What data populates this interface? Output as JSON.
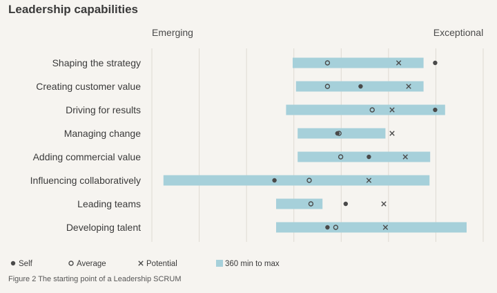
{
  "chart_data": {
    "type": "dot-range",
    "title": "Leadership capabilities",
    "scale_labels": {
      "low": "Emerging",
      "high": "Exceptional"
    },
    "xlim": [
      0,
      1
    ],
    "grid": true,
    "categories": [
      "Shaping the strategy",
      "Creating customer value",
      "Driving for results",
      "Managing change",
      "Adding commercial value",
      "Influencing collaboratively",
      "Leading teams",
      "Developing talent"
    ],
    "series": [
      {
        "name": "360 min to max",
        "marker": "bar",
        "values": [
          [
            0.425,
            0.82
          ],
          [
            0.435,
            0.82
          ],
          [
            0.405,
            0.885
          ],
          [
            0.44,
            0.705
          ],
          [
            0.44,
            0.84
          ],
          [
            0.035,
            0.838
          ],
          [
            0.375,
            0.515
          ],
          [
            0.375,
            0.95
          ]
        ]
      },
      {
        "name": "Self",
        "marker": "dot",
        "values": [
          0.855,
          0.63,
          0.855,
          0.56,
          0.655,
          0.37,
          0.585,
          0.53
        ]
      },
      {
        "name": "Average",
        "marker": "circle",
        "values": [
          0.53,
          0.53,
          0.665,
          0.565,
          0.57,
          0.475,
          0.48,
          0.555
        ]
      },
      {
        "name": "Potential",
        "marker": "x",
        "values": [
          0.745,
          0.775,
          0.725,
          0.725,
          0.765,
          0.655,
          0.7,
          0.705
        ]
      }
    ],
    "legend": {
      "position": "bottom",
      "items": [
        {
          "name": "Self",
          "marker": "dot"
        },
        {
          "name": "Average",
          "marker": "circle"
        },
        {
          "name": "Potential",
          "marker": "x"
        },
        {
          "name": "360 min to max",
          "marker": "bar"
        }
      ]
    },
    "caption": "Figure 2 The starting point of a Leadership SCRUM"
  },
  "colors": {
    "bar": "#a6d0da",
    "marker": "#4a4a4a",
    "grid": "#dedad2"
  }
}
